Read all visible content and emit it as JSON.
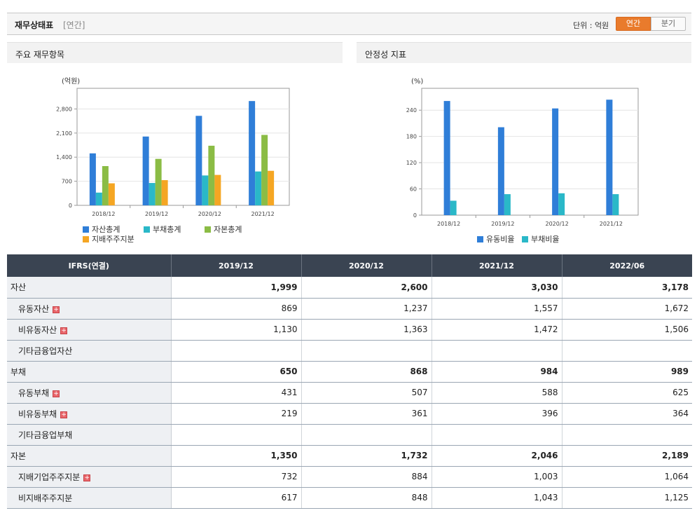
{
  "header": {
    "title": "재무상태표",
    "subtitle": "[연간]",
    "unit_label": "단위 : 억원",
    "toggle_annual": "연간",
    "toggle_quarter": "분기"
  },
  "panels": {
    "left_title": "주요 재무항목",
    "right_title": "안정성 지표"
  },
  "chart_data": [
    {
      "type": "bar",
      "title": "주요 재무항목",
      "ylabel": "(억원)",
      "ylim": [
        0,
        3400
      ],
      "yticks": [
        0,
        700,
        1400,
        2100,
        2800
      ],
      "ytick_labels": [
        "0",
        "700",
        "1,400",
        "2,100",
        "2,800"
      ],
      "categories": [
        "2018/12",
        "2019/12",
        "2020/12",
        "2021/12"
      ],
      "series": [
        {
          "name": "자산총계",
          "color": "#2f7ed8",
          "values": [
            1510,
            1999,
            2600,
            3030
          ]
        },
        {
          "name": "부채총계",
          "color": "#2ab8c8",
          "values": [
            370,
            650,
            868,
            984
          ]
        },
        {
          "name": "자본총계",
          "color": "#8bbc45",
          "values": [
            1140,
            1350,
            1732,
            2046
          ]
        },
        {
          "name": "지배주주지분",
          "color": "#f5a623",
          "values": [
            640,
            732,
            884,
            1003
          ]
        }
      ],
      "grid": true,
      "legend": "bottom"
    },
    {
      "type": "bar",
      "title": "안정성 지표",
      "ylabel": "(%)",
      "ylim": [
        0,
        290
      ],
      "yticks": [
        0,
        60,
        120,
        180,
        240
      ],
      "ytick_labels": [
        "0",
        "60",
        "120",
        "180",
        "240"
      ],
      "categories": [
        "2018/12",
        "2019/12",
        "2020/12",
        "2021/12"
      ],
      "series": [
        {
          "name": "유동비율",
          "color": "#2f7ed8",
          "values": [
            261,
            201,
            244,
            264
          ]
        },
        {
          "name": "부채비율",
          "color": "#2ab8c8",
          "values": [
            33,
            48,
            50,
            48
          ]
        }
      ],
      "grid": true,
      "legend": "bottom"
    }
  ],
  "table": {
    "headers": [
      "IFRS(연결)",
      "2019/12",
      "2020/12",
      "2021/12",
      "2022/06"
    ],
    "rows": [
      {
        "label": "자산",
        "sub": false,
        "bold": true,
        "plus": false,
        "values": [
          "1,999",
          "2,600",
          "3,030",
          "3,178"
        ]
      },
      {
        "label": "유동자산",
        "sub": true,
        "bold": false,
        "plus": true,
        "values": [
          "869",
          "1,237",
          "1,557",
          "1,672"
        ]
      },
      {
        "label": "비유동자산",
        "sub": true,
        "bold": false,
        "plus": true,
        "values": [
          "1,130",
          "1,363",
          "1,472",
          "1,506"
        ]
      },
      {
        "label": "기타금융업자산",
        "sub": true,
        "bold": false,
        "plus": false,
        "values": [
          "",
          "",
          "",
          ""
        ]
      },
      {
        "label": "부채",
        "sub": false,
        "bold": true,
        "plus": false,
        "values": [
          "650",
          "868",
          "984",
          "989"
        ]
      },
      {
        "label": "유동부채",
        "sub": true,
        "bold": false,
        "plus": true,
        "values": [
          "431",
          "507",
          "588",
          "625"
        ]
      },
      {
        "label": "비유동부채",
        "sub": true,
        "bold": false,
        "plus": true,
        "values": [
          "219",
          "361",
          "396",
          "364"
        ]
      },
      {
        "label": "기타금융업부채",
        "sub": true,
        "bold": false,
        "plus": false,
        "values": [
          "",
          "",
          "",
          ""
        ]
      },
      {
        "label": "자본",
        "sub": false,
        "bold": true,
        "plus": false,
        "values": [
          "1,350",
          "1,732",
          "2,046",
          "2,189"
        ]
      },
      {
        "label": "지배기업주주지분",
        "sub": true,
        "bold": false,
        "plus": true,
        "values": [
          "732",
          "884",
          "1,003",
          "1,064"
        ]
      },
      {
        "label": "비지배주주지분",
        "sub": true,
        "bold": false,
        "plus": false,
        "values": [
          "617",
          "848",
          "1,043",
          "1,125"
        ]
      }
    ]
  }
}
